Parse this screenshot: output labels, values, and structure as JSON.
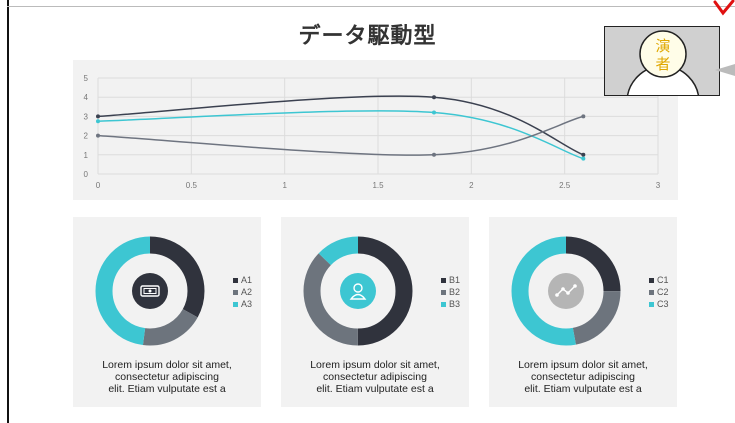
{
  "slide": {
    "title": "データ駆動型",
    "line_chart": {
      "type": "line",
      "x_ticks": [
        "0",
        "0.5",
        "1",
        "1.5",
        "2",
        "2.5",
        "3"
      ],
      "y_ticks": [
        "0",
        "1",
        "2",
        "3",
        "4",
        "5"
      ],
      "xlim": [
        0,
        3
      ],
      "ylim": [
        0,
        5
      ],
      "grid": true,
      "series": [
        {
          "color": "#3b4150",
          "x": [
            0,
            1.8,
            2.6
          ],
          "y": [
            3,
            4,
            1
          ]
        },
        {
          "color": "#3dc6d2",
          "x": [
            0,
            1.8,
            2.6
          ],
          "y": [
            2.75,
            3.2,
            0.8
          ]
        },
        {
          "color": "#6e7480",
          "x": [
            0,
            1.8,
            2.6
          ],
          "y": [
            2,
            1,
            3
          ]
        }
      ]
    },
    "cards": [
      {
        "icon": "money-icon",
        "legend": [
          "A1",
          "A2",
          "A3"
        ],
        "colors": [
          "#30333d",
          "#6d747d",
          "#3dc6d2"
        ],
        "values": [
          33,
          19,
          48
        ],
        "center_color": "#30333d",
        "description": [
          "Lorem ipsum dolor sit amet,",
          "consectetur adipiscing",
          "elit. Etiam vulputate est a"
        ]
      },
      {
        "icon": "user-icon",
        "legend": [
          "B1",
          "B2",
          "B3"
        ],
        "colors": [
          "#30333d",
          "#6d747d",
          "#3dc6d2"
        ],
        "values": [
          50,
          37,
          13
        ],
        "center_color": "#3dc6d2",
        "description": [
          "Lorem ipsum dolor sit amet,",
          "consectetur adipiscing",
          "elit. Etiam vulputate est a"
        ]
      },
      {
        "icon": "trend-icon",
        "legend": [
          "C1",
          "C2",
          "C3"
        ],
        "colors": [
          "#30333d",
          "#6d747d",
          "#3dc6d2"
        ],
        "values": [
          25,
          22,
          53
        ],
        "center_color": "#b5b5b5",
        "description": [
          "Lorem ipsum dolor sit amet,",
          "consectetur adipiscing",
          "elit. Etiam vulputate est a"
        ]
      }
    ]
  },
  "presenter": {
    "badge_line1": "演",
    "badge_line2": "者"
  }
}
